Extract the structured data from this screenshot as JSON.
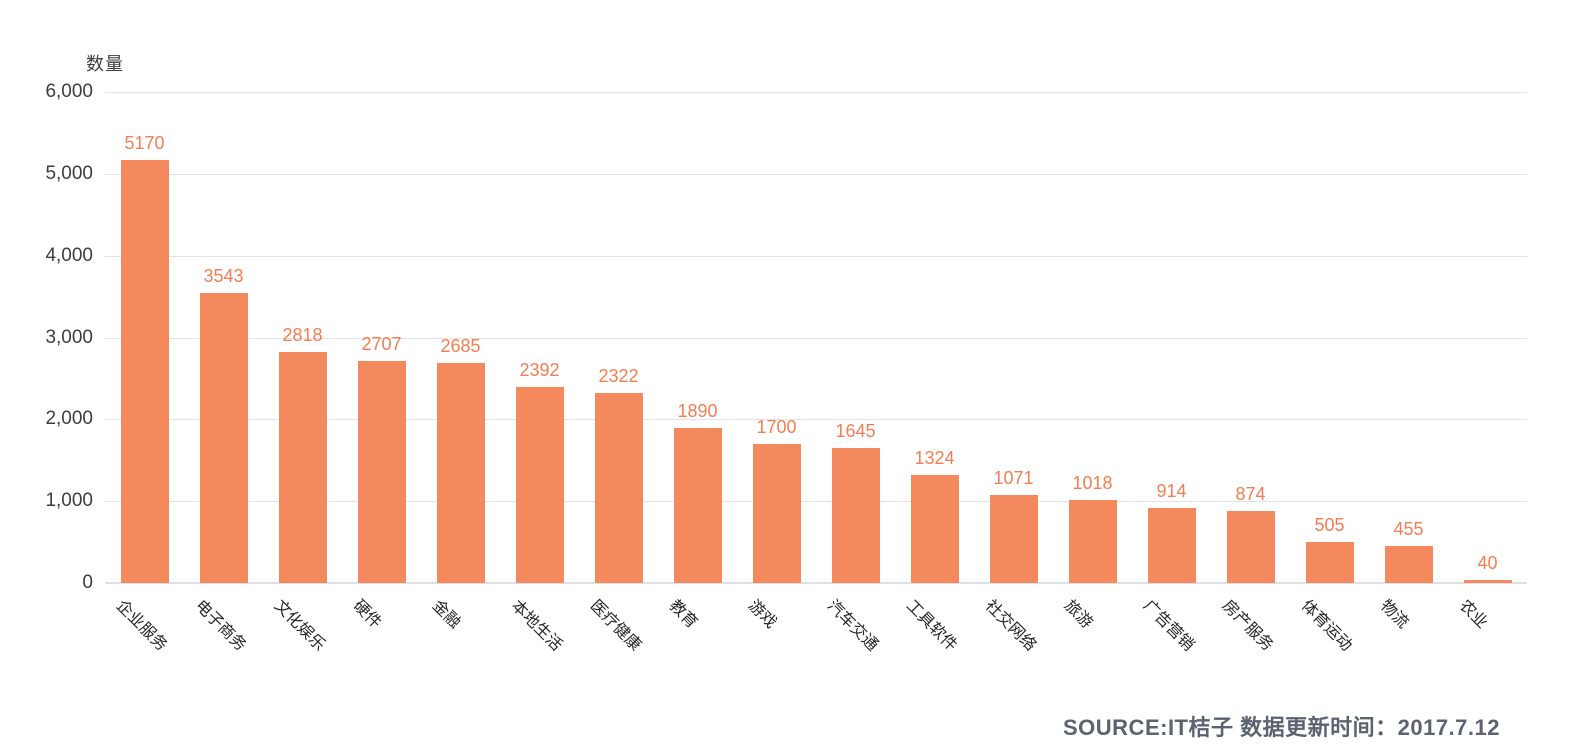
{
  "chart_data": {
    "type": "bar",
    "title": "",
    "ylabel": "数量",
    "xlabel": "",
    "categories": [
      "企业服务",
      "电子商务",
      "文化娱乐",
      "硬件",
      "金融",
      "本地生活",
      "医疗健康",
      "教育",
      "游戏",
      "汽车交通",
      "工具软件",
      "社交网络",
      "旅游",
      "广告营销",
      "房产服务",
      "体育运动",
      "物流",
      "农业"
    ],
    "values": [
      5170,
      3543,
      2818,
      2707,
      2685,
      2392,
      2322,
      1890,
      1700,
      1645,
      1324,
      1071,
      1018,
      914,
      874,
      505,
      455,
      40
    ],
    "ylim": [
      0,
      6000
    ],
    "ytick_interval": 1000,
    "ytick_labels": [
      "0",
      "1,000",
      "2,000",
      "3,000",
      "4,000",
      "5,000",
      "6,000"
    ],
    "grid": "horizontal",
    "legend": "none",
    "value_labels_shown": true,
    "category_label_rotation_deg": 45,
    "colors": {
      "bar": "#f5895e",
      "value_label": "#f57d52",
      "axis_text": "#3d3d3d",
      "category_text": "#262626",
      "gridline": "#e2e2e2",
      "axis_line": "#dde1e5",
      "source_text": "#5b6270",
      "background": "#ffffff"
    }
  },
  "source_note": "SOURCE:IT桔子 数据更新时间：2017.7.12"
}
